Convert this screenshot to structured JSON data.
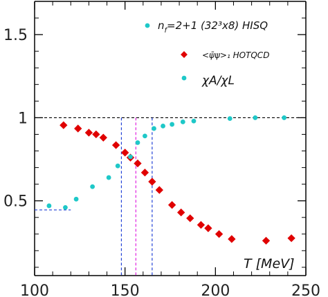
{
  "chart_data": {
    "type": "scatter",
    "title": "",
    "xlabel": "T [MeV]",
    "ylabel": "",
    "xlim": [
      100,
      250
    ],
    "ylim": [
      0.05,
      1.7
    ],
    "x_ticks": [
      {
        "value": 100,
        "label": "100"
      },
      {
        "value": 150,
        "label": "150"
      },
      {
        "value": 200,
        "label": "200"
      },
      {
        "value": 250,
        "label": "250"
      }
    ],
    "y_ticks": [
      {
        "value": 0.5,
        "label": "0.5"
      },
      {
        "value": 1.0,
        "label": "1"
      },
      {
        "value": 1.5,
        "label": "1.5"
      }
    ],
    "legend_heading": {
      "prefix": "n",
      "sub": "f",
      "suffix": "=2+1  (32³x8)  HISQ",
      "color": "#1ec8c8"
    },
    "series": [
      {
        "name": "<ψ̄ψ>₁  HOTQCD",
        "marker": "diamond",
        "color": "#e00000",
        "points": [
          [
            116,
            0.955
          ],
          [
            124,
            0.935
          ],
          [
            130,
            0.91
          ],
          [
            134,
            0.9
          ],
          [
            138,
            0.88
          ],
          [
            145,
            0.835
          ],
          [
            150,
            0.79
          ],
          [
            153,
            0.76
          ],
          [
            157,
            0.725
          ],
          [
            161,
            0.67
          ],
          [
            165,
            0.615
          ],
          [
            169,
            0.565
          ],
          [
            176,
            0.475
          ],
          [
            181,
            0.43
          ],
          [
            186,
            0.395
          ],
          [
            192,
            0.355
          ],
          [
            196,
            0.335
          ],
          [
            202,
            0.3
          ],
          [
            209,
            0.27
          ],
          [
            228,
            0.26
          ],
          [
            242,
            0.275
          ]
        ]
      },
      {
        "name": "χA/χL",
        "marker": "circle",
        "color": "#1ec8c8",
        "points": [
          [
            108,
            0.47
          ],
          [
            117,
            0.46
          ],
          [
            123,
            0.51
          ],
          [
            132,
            0.585
          ],
          [
            141,
            0.64
          ],
          [
            146,
            0.71
          ],
          [
            153,
            0.765
          ],
          [
            157,
            0.85
          ],
          [
            161,
            0.89
          ],
          [
            166,
            0.935
          ],
          [
            171,
            0.95
          ],
          [
            176,
            0.96
          ],
          [
            182,
            0.975
          ],
          [
            188,
            0.98
          ],
          [
            208,
            0.995
          ],
          [
            222,
            1.0
          ],
          [
            238,
            1.0
          ]
        ]
      }
    ],
    "reference_lines": [
      {
        "orientation": "horizontal",
        "value": 1.0,
        "color": "#000000",
        "style": "dashed"
      },
      {
        "orientation": "horizontal",
        "value": 0.445,
        "from": 100,
        "to": 120,
        "color": "#1f3fd6",
        "style": "dashed"
      },
      {
        "orientation": "vertical",
        "value": 148,
        "from": 0.05,
        "to": 1.0,
        "color": "#1f3fd6",
        "style": "dashed"
      },
      {
        "orientation": "vertical",
        "value": 165,
        "from": 0.05,
        "to": 1.0,
        "color": "#1f3fd6",
        "style": "dashed"
      },
      {
        "orientation": "vertical",
        "value": 156,
        "from": 0.05,
        "to": 1.0,
        "color": "#e020e0",
        "style": "dashed"
      }
    ],
    "grid": false,
    "legend_position": "top-right"
  }
}
